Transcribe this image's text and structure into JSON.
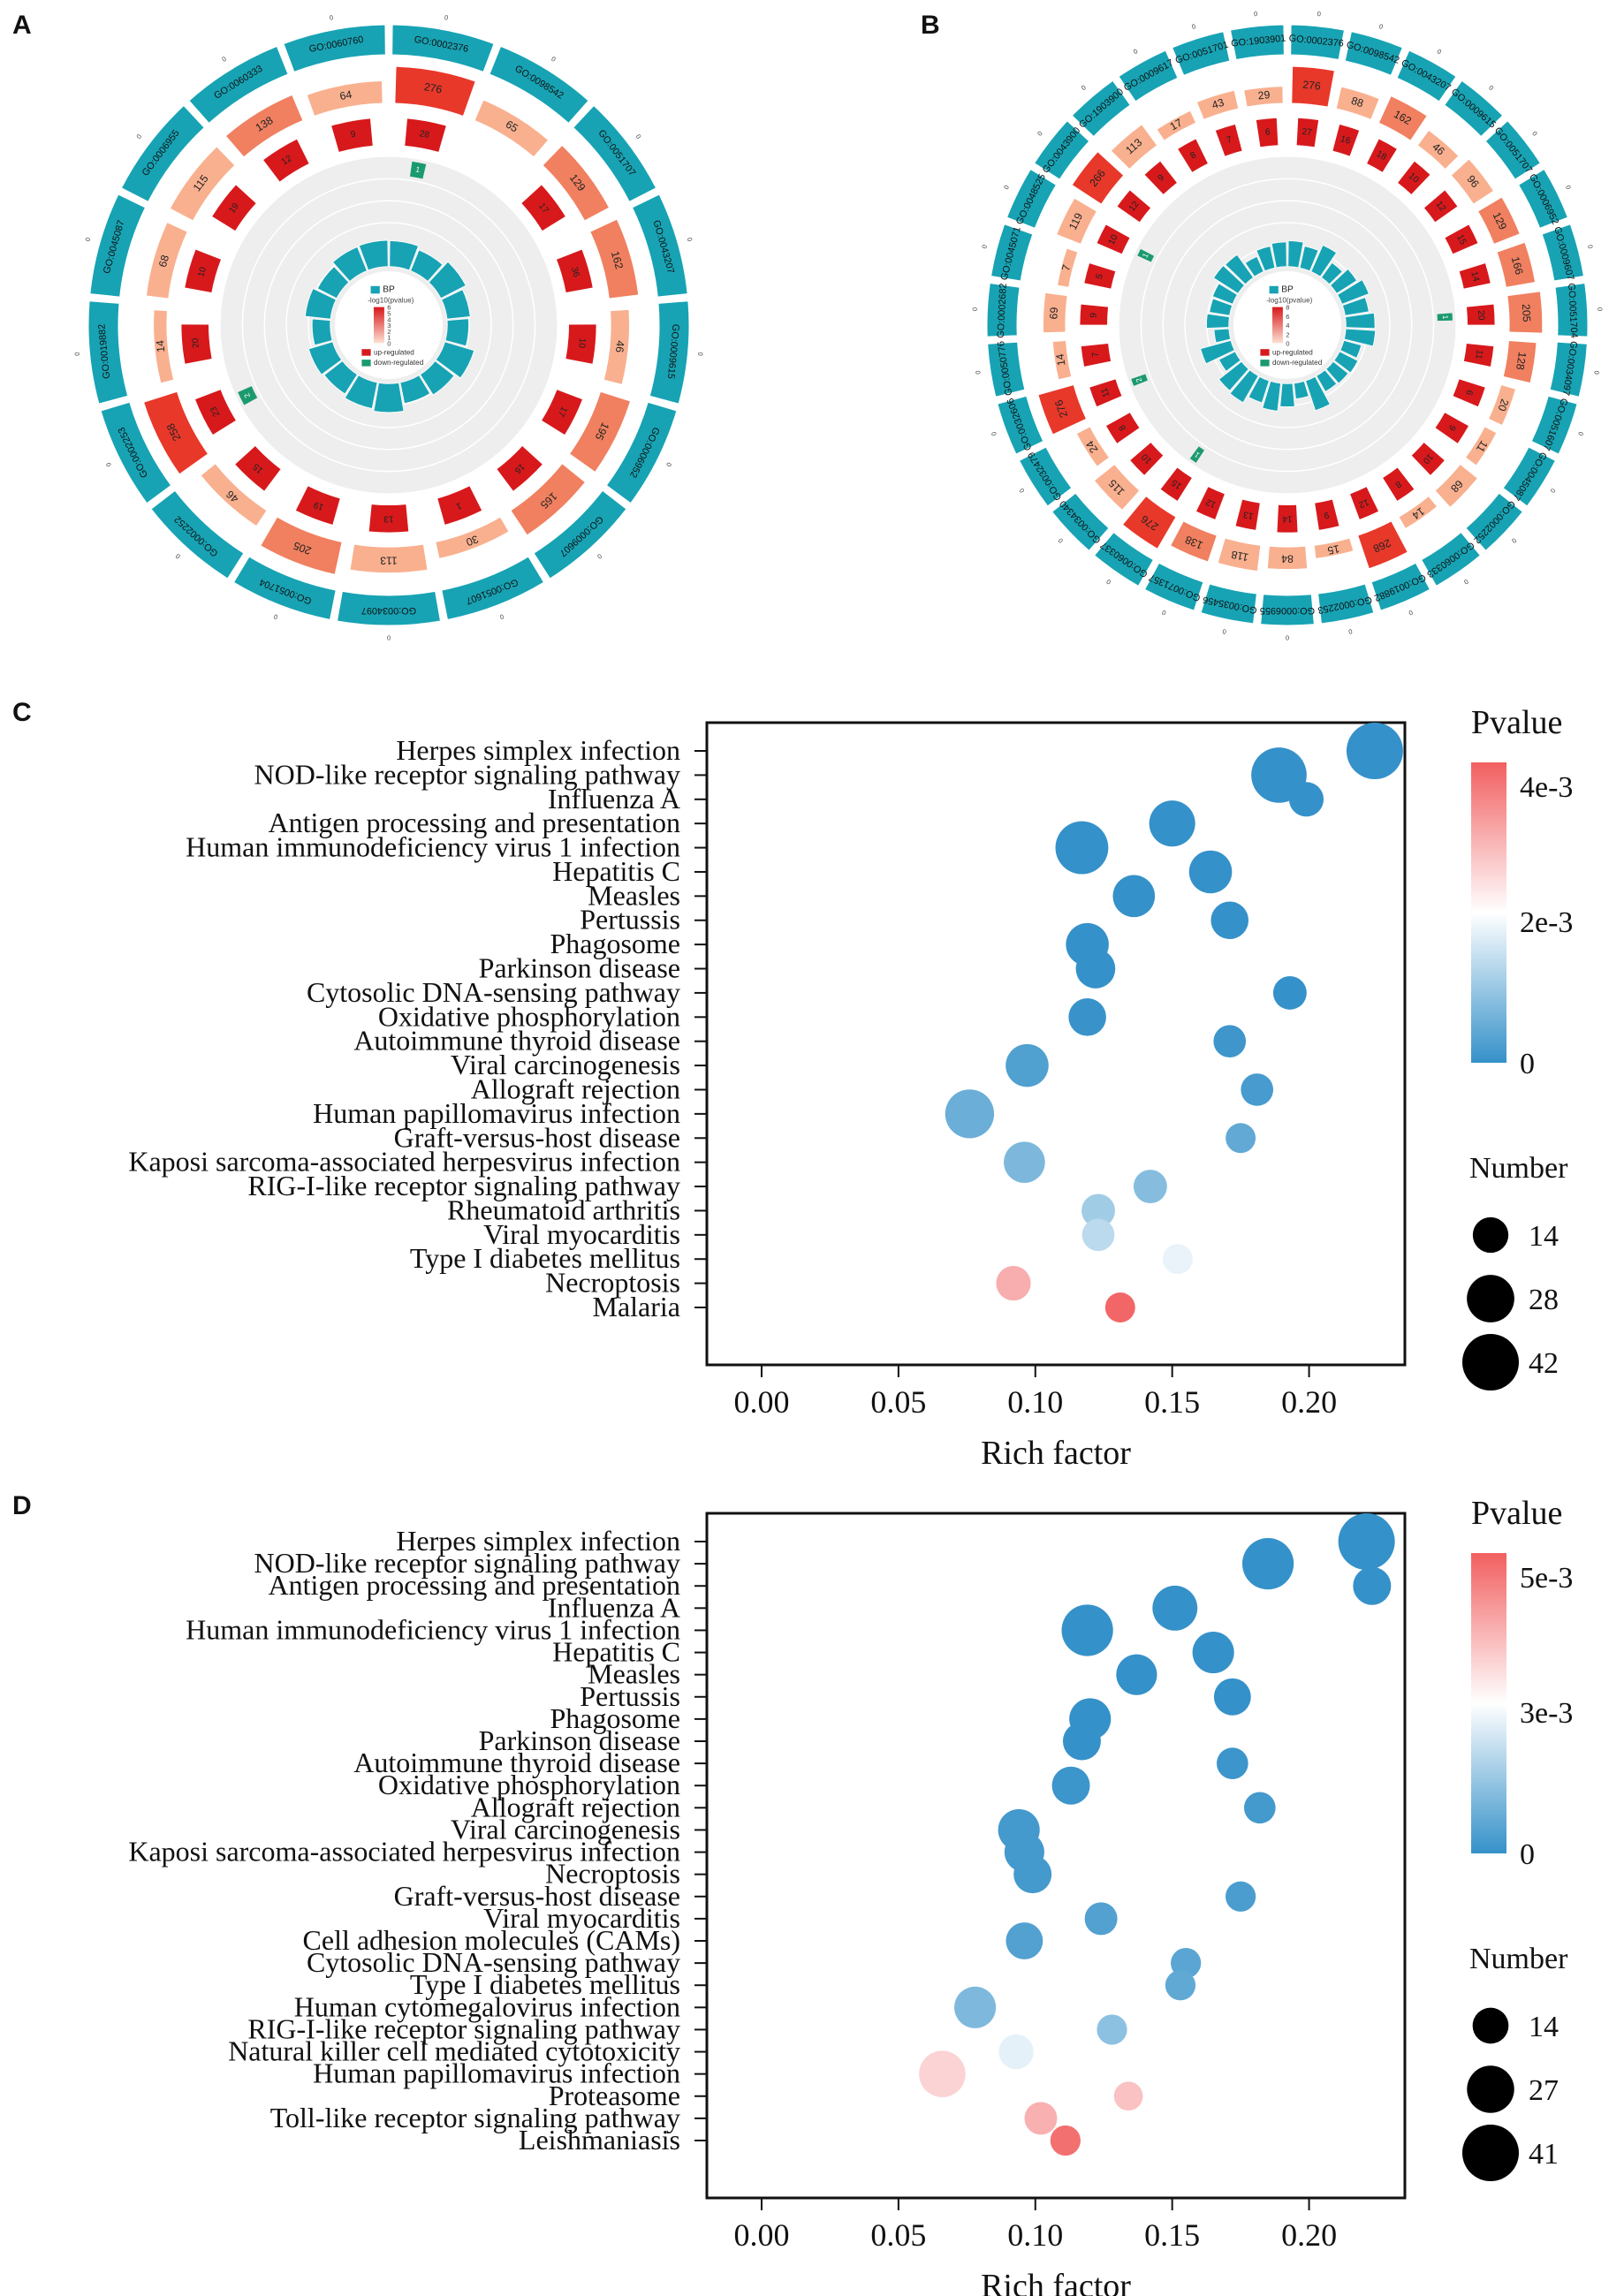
{
  "panels": {
    "A": "A",
    "B": "B",
    "C": "C",
    "D": "D"
  },
  "colors": {
    "teal": "#17a3b4",
    "light_salmon": "#f9b08f",
    "salmon": "#f08060",
    "red": "#d7191c",
    "bright_red": "#e8382a",
    "green": "#1b9a6e",
    "grey_bg": "#eeeeee",
    "blue": "#3591c9",
    "mid": "#ffffff",
    "pink": "#f25f60"
  },
  "circos_A": {
    "legend": {
      "title": "BP",
      "scale_title": "-log10(pvalue)",
      "scale_ticks": [
        "6",
        "5",
        "4",
        "3",
        "2",
        "1",
        "0"
      ],
      "up": "up-regulated",
      "down": "down-regulated"
    },
    "terms": [
      {
        "id": "GO:0002376",
        "count": "276",
        "up": "28",
        "down": "1",
        "big": 1.0
      },
      {
        "id": "GO:0098542",
        "count": "65",
        "up": "",
        "down": "",
        "big": 0.6
      },
      {
        "id": "GO:0051707",
        "count": "129",
        "up": "17",
        "down": "",
        "big": 0.75
      },
      {
        "id": "GO:0043207",
        "count": "162",
        "up": "36",
        "down": "",
        "big": 0.8
      },
      {
        "id": "GO:0009615",
        "count": "46",
        "up": "10",
        "down": "",
        "big": 0.5
      },
      {
        "id": "GO:0006952",
        "count": "195",
        "up": "17",
        "down": "",
        "big": 0.85
      },
      {
        "id": "GO:0009607",
        "count": "165",
        "up": "16",
        "down": "",
        "big": 0.8
      },
      {
        "id": "GO:0051607",
        "count": "30",
        "up": "1",
        "down": "",
        "big": 0.45
      },
      {
        "id": "GO:0034097",
        "count": "113",
        "up": "13",
        "down": "",
        "big": 0.7
      },
      {
        "id": "GO:0051704",
        "count": "205",
        "up": "19",
        "down": "",
        "big": 0.9
      },
      {
        "id": "GO:0002252",
        "count": "46",
        "up": "15",
        "down": "",
        "big": 0.5
      },
      {
        "id": "GO:0002253",
        "count": "258",
        "up": "23",
        "down": "2",
        "big": 0.95
      },
      {
        "id": "GO:0019882",
        "count": "14",
        "up": "20",
        "down": "",
        "big": 0.35
      },
      {
        "id": "GO:0045087",
        "count": "68",
        "up": "10",
        "down": "",
        "big": 0.6
      },
      {
        "id": "GO:0006955",
        "count": "115",
        "up": "19",
        "down": "",
        "big": 0.7
      },
      {
        "id": "GO:0060333",
        "count": "138",
        "up": "12",
        "down": "",
        "big": 0.75
      },
      {
        "id": "GO:0060760",
        "count": "64",
        "up": "9",
        "down": "",
        "big": 0.6
      }
    ]
  },
  "circos_B": {
    "legend": {
      "title": "BP",
      "scale_title": "-log10(pvalue)",
      "scale_ticks": [
        "8",
        "6",
        "4",
        "2",
        "0"
      ],
      "up": "up-regulated",
      "down": "down-regulated"
    },
    "terms": [
      {
        "id": "GO:0002376",
        "count": "276",
        "up": "27",
        "down": "",
        "big": 1.0
      },
      {
        "id": "GO:0098542",
        "count": "88",
        "up": "16",
        "down": "",
        "big": 0.6
      },
      {
        "id": "GO:0043207",
        "count": "162",
        "up": "18",
        "down": "",
        "big": 0.8
      },
      {
        "id": "GO:0009615",
        "count": "46",
        "up": "10",
        "down": "",
        "big": 0.5
      },
      {
        "id": "GO:0051707",
        "count": "96",
        "up": "12",
        "down": "",
        "big": 0.65
      },
      {
        "id": "GO:0006952",
        "count": "129",
        "up": "15",
        "down": "",
        "big": 0.75
      },
      {
        "id": "GO:0009607",
        "count": "166",
        "up": "14",
        "down": "",
        "big": 0.8
      },
      {
        "id": "GO:0051704",
        "count": "205",
        "up": "20",
        "down": "1",
        "big": 0.9
      },
      {
        "id": "GO:0034097",
        "count": "128",
        "up": "11",
        "down": "",
        "big": 0.75
      },
      {
        "id": "GO:0051607",
        "count": "20",
        "up": "6",
        "down": "",
        "big": 0.4
      },
      {
        "id": "GO:0045087",
        "count": "11",
        "up": "9",
        "down": "",
        "big": 0.35
      },
      {
        "id": "GO:0002252",
        "count": "68",
        "up": "10",
        "down": "",
        "big": 0.6
      },
      {
        "id": "GO:0060333",
        "count": "14",
        "up": "8",
        "down": "",
        "big": 0.35
      },
      {
        "id": "GO:0019882",
        "count": "268",
        "up": "12",
        "down": "",
        "big": 0.95
      },
      {
        "id": "GO:0002253",
        "count": "15",
        "up": "9",
        "down": "",
        "big": 0.35
      },
      {
        "id": "GO:0006955",
        "count": "84",
        "up": "14",
        "down": "",
        "big": 0.6
      },
      {
        "id": "GO:0035456",
        "count": "118",
        "up": "13",
        "down": "",
        "big": 0.7
      },
      {
        "id": "GO:0071357",
        "count": "138",
        "up": "12",
        "down": "",
        "big": 0.75
      },
      {
        "id": "GO:0060337",
        "count": "276",
        "up": "15",
        "down": "1",
        "big": 1.0
      },
      {
        "id": "GO:0034340",
        "count": "115",
        "up": "10",
        "down": "",
        "big": 0.7
      },
      {
        "id": "GO:0032479",
        "count": "24",
        "up": "8",
        "down": "",
        "big": 0.4
      },
      {
        "id": "GO:0032606",
        "count": "276",
        "up": "11",
        "down": "2",
        "big": 1.0
      },
      {
        "id": "GO:0050776",
        "count": "14",
        "up": "7",
        "down": "",
        "big": 0.35
      },
      {
        "id": "GO:0002682",
        "count": "69",
        "up": "9",
        "down": "",
        "big": 0.6
      },
      {
        "id": "GO:0045071",
        "count": "7",
        "up": "5",
        "down": "",
        "big": 0.3
      },
      {
        "id": "GO:0048525",
        "count": "119",
        "up": "10",
        "down": "1",
        "big": 0.7
      },
      {
        "id": "GO:0043900",
        "count": "266",
        "up": "12",
        "down": "",
        "big": 0.95
      },
      {
        "id": "GO:1903900",
        "count": "113",
        "up": "9",
        "down": "",
        "big": 0.7
      },
      {
        "id": "GO:0009617",
        "count": "17",
        "up": "8",
        "down": "",
        "big": 0.35
      },
      {
        "id": "GO:0051701",
        "count": "43",
        "up": "7",
        "down": "",
        "big": 0.5
      },
      {
        "id": "GO:1903901",
        "count": "29",
        "up": "6",
        "down": "",
        "big": 0.45
      }
    ]
  },
  "chart_data": [
    {
      "type": "scatter",
      "panel": "C",
      "xlabel": "Rich factor",
      "ylabel": "",
      "xlim": [
        -0.02,
        0.235
      ],
      "xticks": [
        0.0,
        0.05,
        0.1,
        0.15,
        0.2
      ],
      "xtick_labels": [
        "0.00",
        "0.05",
        "0.10",
        "0.15",
        "0.20"
      ],
      "color_legend_title": "Pvalue",
      "color_legend_ticks": [
        "4e-3",
        "2e-3",
        "0"
      ],
      "color_legend_max": 0.0045,
      "size_legend_title": "Number",
      "size_legend_values": [
        14,
        28,
        42
      ],
      "size_legend_labels": [
        "14",
        "28",
        "42"
      ],
      "categories": [
        "Herpes simplex infection",
        "NOD-like receptor signaling pathway",
        "Influenza A",
        "Antigen processing and presentation",
        "Human immunodeficiency virus 1 infection",
        "Hepatitis C",
        "Measles",
        "Pertussis",
        "Phagosome",
        "Parkinson disease",
        "Cytosolic DNA-sensing pathway",
        "Oxidative phosphorylation",
        "Autoimmune thyroid disease",
        "Viral carcinogenesis",
        "Allograft rejection",
        "Human papillomavirus infection",
        "Graft-versus-host disease",
        "Kaposi sarcoma-associated herpesvirus infection",
        "RIG-I-like receptor signaling pathway",
        "Rheumatoid arthritis",
        "Viral myocarditis",
        "Type I diabetes mellitus",
        "Necroptosis",
        "Malaria"
      ],
      "rich_factor": [
        0.224,
        0.189,
        0.199,
        0.15,
        0.117,
        0.164,
        0.136,
        0.171,
        0.119,
        0.122,
        0.193,
        0.119,
        0.171,
        0.097,
        0.181,
        0.076,
        0.175,
        0.096,
        0.142,
        0.123,
        0.123,
        0.152,
        0.092,
        0.131
      ],
      "number": [
        42,
        40,
        13,
        26,
        36,
        22,
        21,
        16,
        22,
        18,
        12,
        16,
        11,
        22,
        11,
        30,
        9,
        20,
        12,
        12,
        11,
        9,
        13,
        9
      ],
      "pvalue": [
        0.0,
        0.0,
        0.0,
        0.0,
        0.0,
        0.0,
        0.0,
        0.0,
        0.0,
        0.0,
        0.0,
        5e-05,
        0.0001,
        0.0003,
        0.0002,
        0.0006,
        0.0005,
        0.0008,
        0.0009,
        0.0012,
        0.0015,
        0.002,
        0.0034,
        0.0044
      ]
    },
    {
      "type": "scatter",
      "panel": "D",
      "xlabel": "Rich factor",
      "ylabel": "",
      "xlim": [
        -0.02,
        0.235
      ],
      "xticks": [
        0.0,
        0.05,
        0.1,
        0.15,
        0.2
      ],
      "xtick_labels": [
        "0.00",
        "0.05",
        "0.10",
        "0.15",
        "0.20"
      ],
      "color_legend_title": "Pvalue",
      "color_legend_ticks": [
        "5e-3",
        "3e-3",
        "0"
      ],
      "color_legend_max": 0.0055,
      "size_legend_title": "Number",
      "size_legend_values": [
        14,
        27,
        41
      ],
      "size_legend_labels": [
        "14",
        "27",
        "41"
      ],
      "categories": [
        "Herpes simplex infection",
        "NOD-like receptor signaling pathway",
        "Antigen processing and presentation",
        "Influenza A",
        "Human immunodeficiency virus 1 infection",
        "Hepatitis C",
        "Measles",
        "Pertussis",
        "Phagosome",
        "Parkinson disease",
        "Autoimmune thyroid disease",
        "Oxidative phosphorylation",
        "Allograft rejection",
        "Viral carcinogenesis",
        "Kaposi sarcoma-associated herpesvirus infection",
        "Necroptosis",
        "Graft-versus-host disease",
        "Viral myocarditis",
        "Cell adhesion molecules (CAMs)",
        "Cytosolic DNA-sensing pathway",
        "Type I diabetes mellitus",
        "Human cytomegalovirus infection",
        "RIG-I-like receptor signaling pathway",
        "Natural killer cell mediated cytotoxicity",
        "Human papillomavirus infection",
        "Proteasome",
        "Toll-like receptor signaling pathway",
        "Leishmaniasis"
      ],
      "rich_factor": [
        0.221,
        0.185,
        0.223,
        0.151,
        0.119,
        0.165,
        0.137,
        0.172,
        0.12,
        0.117,
        0.172,
        0.113,
        0.182,
        0.094,
        0.096,
        0.099,
        0.175,
        0.124,
        0.096,
        0.155,
        0.153,
        0.078,
        0.128,
        0.093,
        0.066,
        0.134,
        0.102,
        0.111
      ],
      "number": [
        41,
        33,
        16,
        24,
        33,
        20,
        19,
        15,
        20,
        16,
        10,
        16,
        10,
        20,
        18,
        16,
        9,
        11,
        15,
        9,
        9,
        20,
        9,
        13,
        26,
        8,
        11,
        9
      ],
      "pvalue": [
        0.0,
        0.0,
        0.0,
        0.0,
        0.0,
        0.0,
        0.0,
        0.0,
        0.0,
        0.0,
        0.0001,
        0.0001,
        0.0002,
        0.0002,
        0.0002,
        0.0002,
        0.0003,
        0.0004,
        0.0004,
        0.0005,
        0.0006,
        0.001,
        0.0012,
        0.0024,
        0.0035,
        0.0038,
        0.0041,
        0.0052
      ]
    }
  ]
}
